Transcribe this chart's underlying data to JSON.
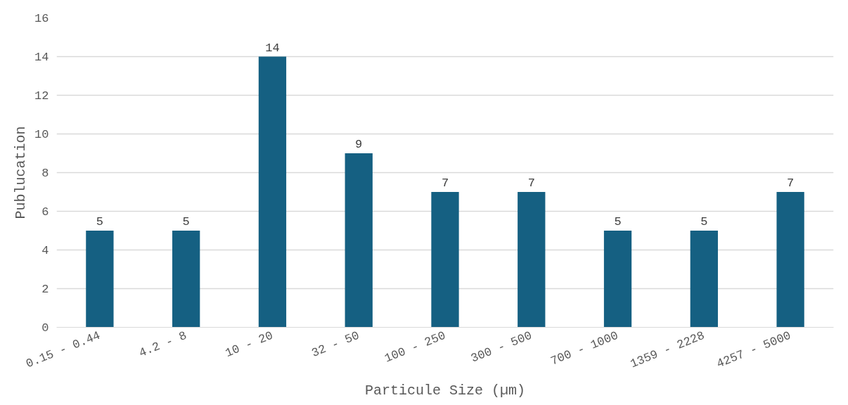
{
  "chart_data": {
    "type": "bar",
    "xlabel": "Particule Size (µm)",
    "ylabel": "Publucation",
    "categories": [
      "0.15 - 0.44",
      "4.2 - 8",
      "10 - 20",
      "32 - 50",
      "100 - 250",
      "300 - 500",
      "700 - 1000",
      "1359 - 2228",
      "4257 - 5000"
    ],
    "values": [
      5,
      5,
      14,
      9,
      7,
      7,
      5,
      5,
      7
    ],
    "color": "#156082",
    "ylim": [
      0,
      16
    ],
    "yticks": [
      0,
      2,
      4,
      6,
      8,
      10,
      12,
      14,
      16
    ],
    "grid": "y",
    "data_labels": true
  }
}
